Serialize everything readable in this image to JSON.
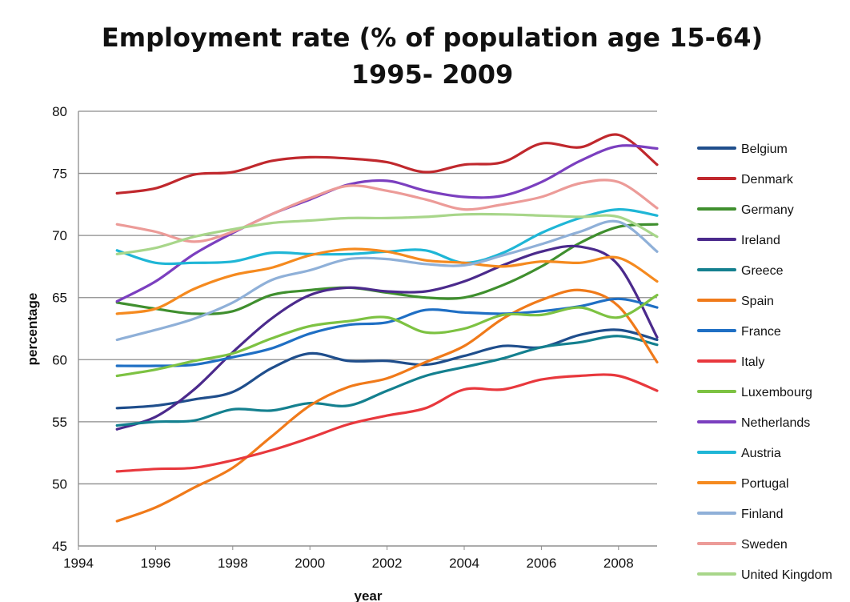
{
  "chart_data": {
    "type": "line",
    "title_lines": [
      "Employment rate (% of  population age 15-64)",
      "1995- 2009"
    ],
    "xlabel": "year",
    "ylabel": "percentage",
    "xlim": [
      1994,
      2009
    ],
    "ylim": [
      45,
      80
    ],
    "x_ticks": [
      "1994",
      "1996",
      "1998",
      "2000",
      "2002",
      "2004",
      "2006",
      "2008"
    ],
    "y_ticks": [
      "45",
      "50",
      "55",
      "60",
      "65",
      "70",
      "75",
      "80"
    ],
    "grid": "horizontal",
    "legend_position": "right",
    "x": [
      1995,
      1996,
      1997,
      1998,
      1999,
      2000,
      2001,
      2002,
      2003,
      2004,
      2005,
      2006,
      2007,
      2008,
      2009
    ],
    "series": [
      {
        "name": "Belgium",
        "color": "#1f4e8c",
        "values": [
          56.1,
          56.3,
          56.8,
          57.4,
          59.3,
          60.5,
          59.9,
          59.9,
          59.6,
          60.3,
          61.1,
          61.0,
          62.0,
          62.4,
          61.6
        ]
      },
      {
        "name": "Denmark",
        "color": "#c0282d",
        "values": [
          73.4,
          73.8,
          74.9,
          75.1,
          76.0,
          76.3,
          76.2,
          75.9,
          75.1,
          75.7,
          75.9,
          77.4,
          77.1,
          78.1,
          75.7
        ]
      },
      {
        "name": "Germany",
        "color": "#3f8f2e",
        "values": [
          64.6,
          64.1,
          63.7,
          63.9,
          65.2,
          65.6,
          65.8,
          65.4,
          65.0,
          65.0,
          66.0,
          67.5,
          69.4,
          70.7,
          70.9
        ]
      },
      {
        "name": "Ireland",
        "color": "#4b2a8c",
        "values": [
          54.4,
          55.4,
          57.6,
          60.6,
          63.3,
          65.2,
          65.8,
          65.5,
          65.5,
          66.3,
          67.6,
          68.7,
          69.1,
          67.6,
          61.8
        ]
      },
      {
        "name": "Greece",
        "color": "#14808f",
        "values": [
          54.7,
          55.0,
          55.1,
          56.0,
          55.9,
          56.5,
          56.3,
          57.5,
          58.7,
          59.4,
          60.1,
          61.0,
          61.4,
          61.9,
          61.2
        ]
      },
      {
        "name": "Spain",
        "color": "#f07a1a",
        "values": [
          47.0,
          48.1,
          49.7,
          51.3,
          53.8,
          56.3,
          57.8,
          58.5,
          59.8,
          61.1,
          63.3,
          64.8,
          65.6,
          64.3,
          59.8
        ]
      },
      {
        "name": "France",
        "color": "#1f6fc4",
        "values": [
          59.5,
          59.5,
          59.6,
          60.2,
          60.9,
          62.1,
          62.8,
          63.0,
          64.0,
          63.8,
          63.7,
          63.9,
          64.3,
          64.9,
          64.2
        ]
      },
      {
        "name": "Italy",
        "color": "#e8383d",
        "values": [
          51.0,
          51.2,
          51.3,
          51.9,
          52.7,
          53.7,
          54.8,
          55.5,
          56.1,
          57.6,
          57.6,
          58.4,
          58.7,
          58.7,
          57.5
        ]
      },
      {
        "name": "Luxembourg",
        "color": "#7dc242",
        "values": [
          58.7,
          59.2,
          59.9,
          60.5,
          61.7,
          62.7,
          63.1,
          63.4,
          62.2,
          62.5,
          63.6,
          63.6,
          64.2,
          63.4,
          65.2
        ]
      },
      {
        "name": "Netherlands",
        "color": "#7b3fbf",
        "values": [
          64.7,
          66.3,
          68.5,
          70.2,
          71.7,
          72.9,
          74.1,
          74.4,
          73.6,
          73.1,
          73.2,
          74.3,
          76.0,
          77.2,
          77.0
        ]
      },
      {
        "name": "Austria",
        "color": "#1fb6d6",
        "values": [
          68.8,
          67.8,
          67.8,
          67.9,
          68.6,
          68.5,
          68.5,
          68.7,
          68.8,
          67.8,
          68.6,
          70.2,
          71.4,
          72.1,
          71.6
        ]
      },
      {
        "name": "Portugal",
        "color": "#f58a1f",
        "values": [
          63.7,
          64.1,
          65.7,
          66.8,
          67.4,
          68.4,
          68.9,
          68.7,
          68.0,
          67.8,
          67.5,
          67.9,
          67.8,
          68.2,
          66.3
        ]
      },
      {
        "name": "Finland",
        "color": "#8fb0d8",
        "values": [
          61.6,
          62.4,
          63.3,
          64.6,
          66.4,
          67.2,
          68.1,
          68.1,
          67.7,
          67.6,
          68.4,
          69.3,
          70.3,
          71.1,
          68.7
        ]
      },
      {
        "name": "Sweden",
        "color": "#ec9b98",
        "values": [
          70.9,
          70.3,
          69.5,
          70.3,
          71.7,
          73.0,
          74.0,
          73.6,
          72.9,
          72.1,
          72.5,
          73.1,
          74.2,
          74.3,
          72.2
        ]
      },
      {
        "name": "United Kingdom",
        "color": "#a8d68a",
        "values": [
          68.5,
          69.0,
          69.9,
          70.5,
          71.0,
          71.2,
          71.4,
          71.4,
          71.5,
          71.7,
          71.7,
          71.6,
          71.5,
          71.5,
          69.9
        ]
      }
    ]
  }
}
